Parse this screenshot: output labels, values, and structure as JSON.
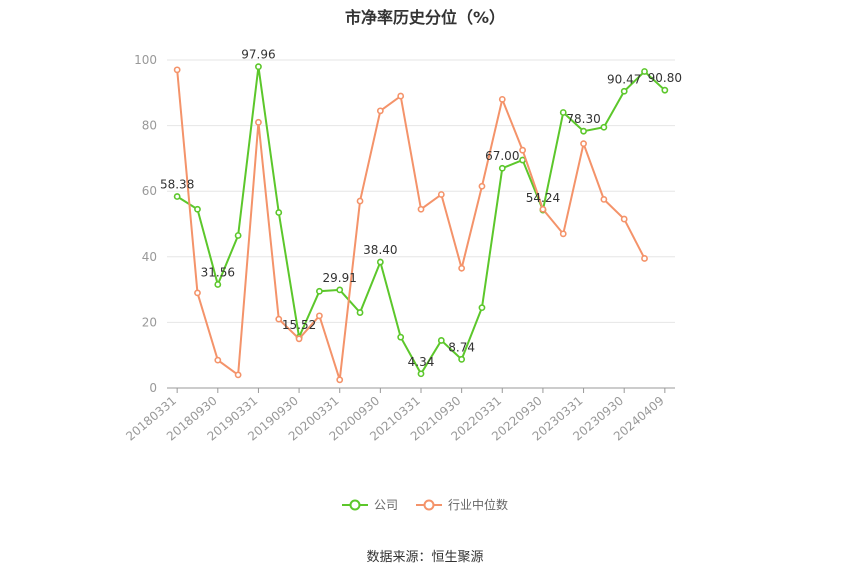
{
  "title": "市净率历史分位（%）",
  "source": "数据来源：恒生聚源",
  "colors": {
    "company": "#5cc72b",
    "industry": "#f4936a",
    "grid": "#e6e6e6",
    "axis": "#999999",
    "label": "#333333"
  },
  "chart_data": {
    "type": "line",
    "title": "市净率历史分位（%）",
    "ylim": [
      0,
      100
    ],
    "yticks": [
      0,
      20,
      40,
      60,
      80,
      100
    ],
    "grid": true,
    "legend_position": "bottom",
    "x": [
      "20180331",
      "20180630",
      "20180930",
      "20181231",
      "20190331",
      "20190630",
      "20190930",
      "20191231",
      "20200331",
      "20200630",
      "20200930",
      "20201231",
      "20210331",
      "20210630",
      "20210930",
      "20211231",
      "20220331",
      "20220630",
      "20220930",
      "20221231",
      "20230331",
      "20230630",
      "20230930",
      "20231231",
      "20240409"
    ],
    "x_tick_labels": [
      "20180331",
      "20180930",
      "20190331",
      "20190930",
      "20200331",
      "20200930",
      "20210331",
      "20210930",
      "20220331",
      "20220930",
      "20230331",
      "20230930",
      "20240409"
    ],
    "series": [
      {
        "name": "公司",
        "color": "#5cc72b",
        "values": [
          58.38,
          54.5,
          31.56,
          46.5,
          97.96,
          53.5,
          15.52,
          29.5,
          29.91,
          23,
          38.4,
          15.5,
          4.34,
          14.5,
          8.74,
          24.5,
          67.0,
          69.5,
          54.24,
          84,
          78.3,
          79.5,
          90.47,
          96.5,
          90.8
        ],
        "labels": {
          "0": "58.38",
          "2": "31.56",
          "4": "97.96",
          "6": "15.52",
          "8": "29.91",
          "10": "38.40",
          "12": "4.34",
          "14": "8.74",
          "16": "67.00",
          "18": "54.24",
          "20": "78.30",
          "22": "90.47",
          "24": "90.80"
        }
      },
      {
        "name": "行业中位数",
        "color": "#f4936a",
        "values": [
          97,
          29,
          8.5,
          4,
          81,
          21,
          15,
          22,
          2.5,
          57,
          84.5,
          89,
          54.5,
          59,
          36.5,
          61.5,
          88,
          72.5,
          54.5,
          47,
          74.5,
          57.5,
          51.5,
          39.5,
          null
        ]
      }
    ]
  }
}
